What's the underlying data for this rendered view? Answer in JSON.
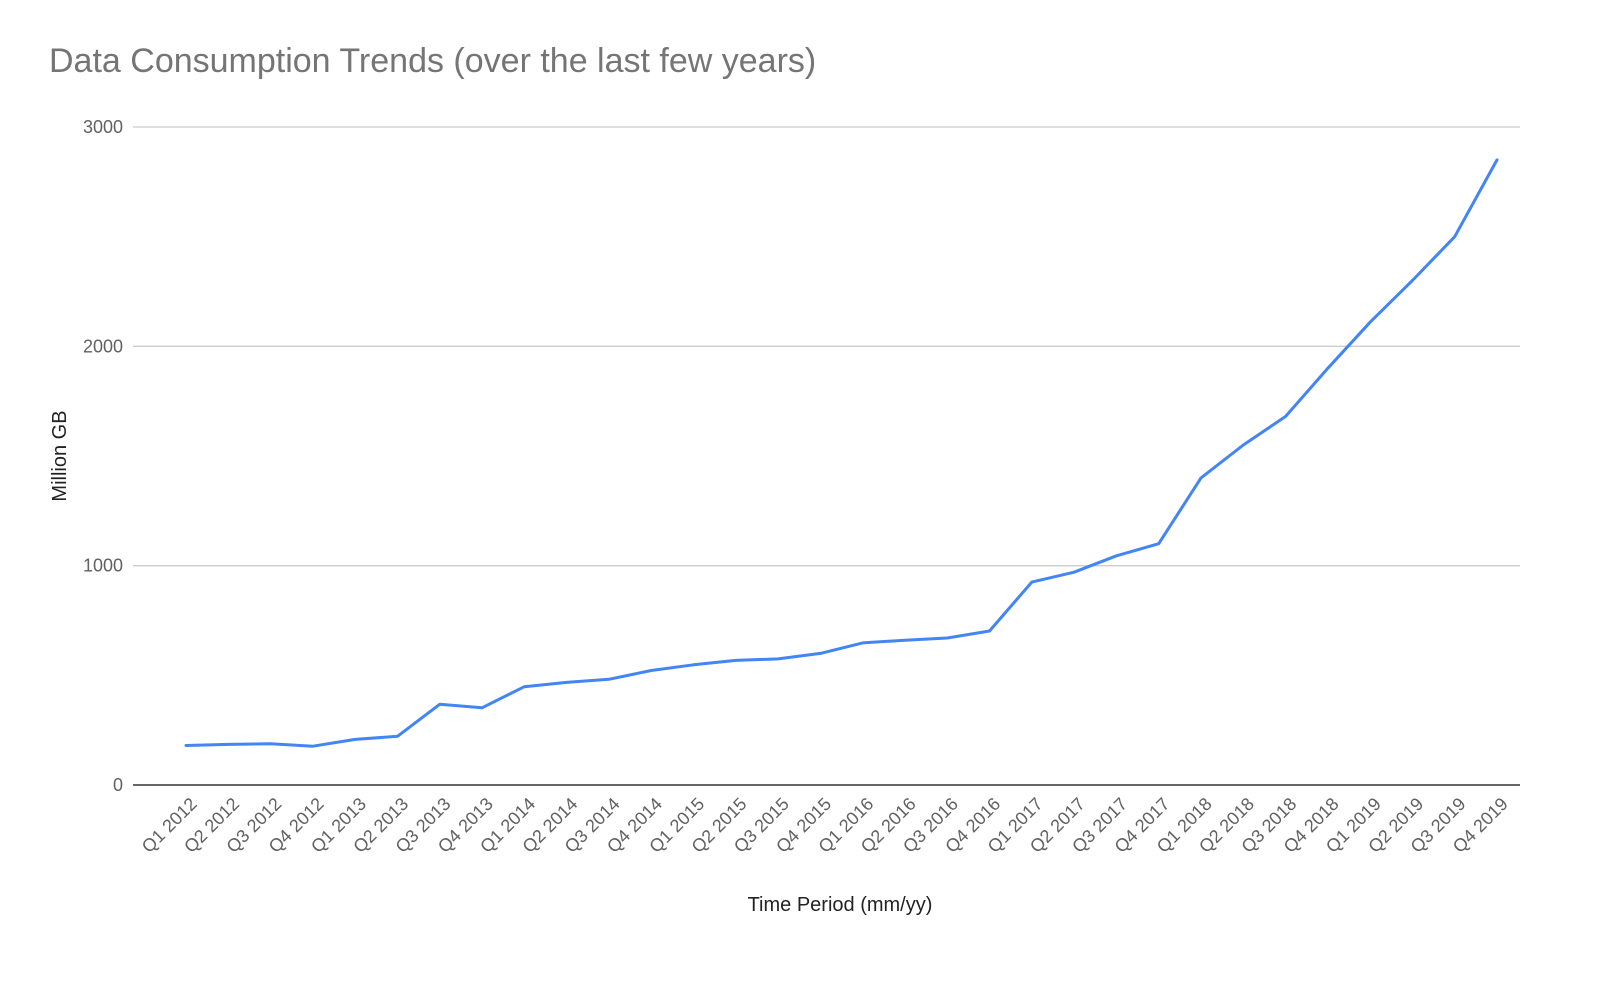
{
  "chart_data": {
    "type": "line",
    "title": "Data Consumption Trends (over the last few years)",
    "xlabel": "Time Period (mm/yy)",
    "ylabel": "Million GB",
    "ylim": [
      0,
      3000
    ],
    "yticks": [
      "0",
      "1000",
      "2000",
      "3000"
    ],
    "grid": true,
    "legend": "none",
    "colors": {
      "series": "#4285f4",
      "grid": "#cccccc",
      "axis": "#333333"
    },
    "categories": [
      "Q1 2012",
      "Q2 2012",
      "Q3 2012",
      "Q4 2012",
      "Q1 2013",
      "Q2 2013",
      "Q3 2013",
      "Q4 2013",
      "Q1 2014",
      "Q2 2014",
      "Q3 2014",
      "Q4 2014",
      "Q1 2015",
      "Q2 2015",
      "Q3 2015",
      "Q4 2015",
      "Q1 2016",
      "Q2 2016",
      "Q3 2016",
      "Q4 2016",
      "Q1 2017",
      "Q2 2017",
      "Q3 2017",
      "Q4 2017",
      "Q1 2018",
      "Q2 2018",
      "Q3 2018",
      "Q4 2018",
      "Q1 2019",
      "Q2 2019",
      "Q3 2019",
      "Q4 2019"
    ],
    "series": [
      {
        "values": [
          180,
          185,
          188,
          177,
          208,
          222,
          368,
          352,
          448,
          468,
          482,
          522,
          548,
          568,
          575,
          600,
          648,
          660,
          670,
          702,
          925,
          970,
          1045,
          1100,
          1400,
          1550,
          1680,
          1900,
          2110,
          2300,
          2500,
          2850
        ]
      }
    ]
  }
}
